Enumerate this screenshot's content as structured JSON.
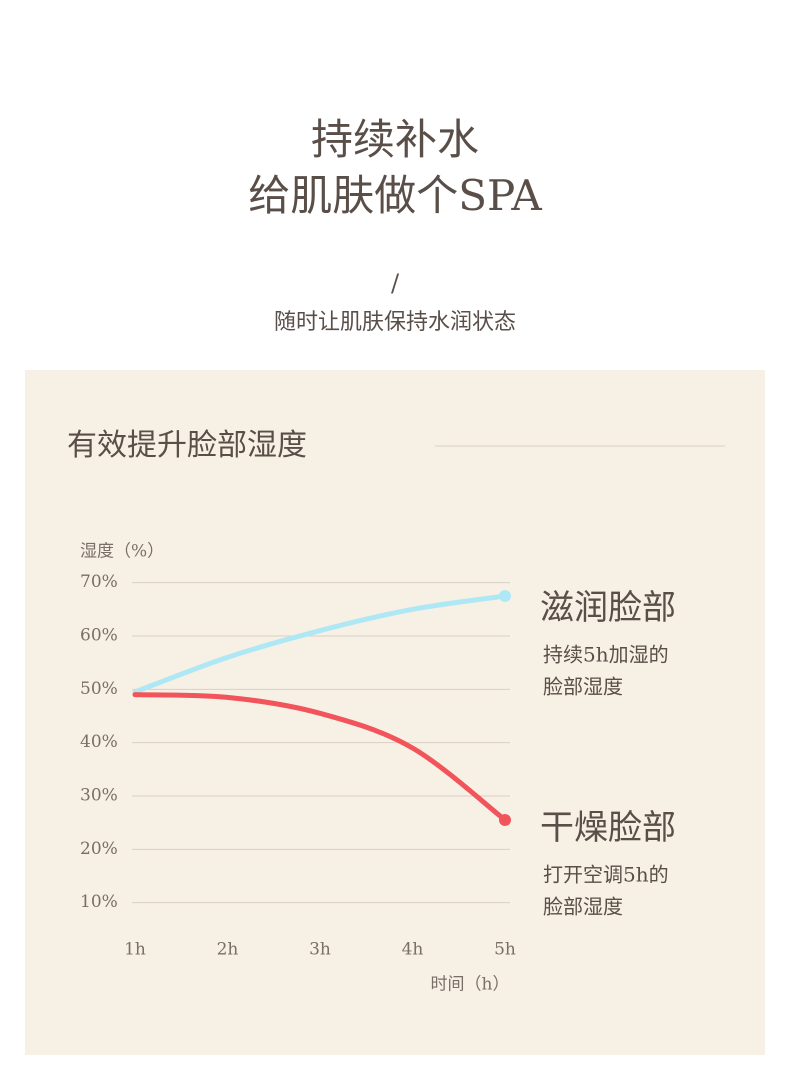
{
  "header": {
    "title_lines": [
      "持续补水",
      "给肌肤做个SPA"
    ],
    "divider": "/",
    "subtitle": "随时让肌肤保持水润状态"
  },
  "panel": {
    "heading": "有效提升脸部湿度"
  },
  "chart_data": {
    "type": "line",
    "y_label": "湿度（%）",
    "x_label": "时间（h）",
    "categories": [
      "1h",
      "2h",
      "3h",
      "4h",
      "5h"
    ],
    "series": [
      {
        "name": "滋润脸部",
        "color": "#aee8f5",
        "values": [
          49.5,
          56,
          61,
          65,
          67.5
        ],
        "notes": [
          "持续5h加湿的",
          "脸部湿度"
        ]
      },
      {
        "name": "干燥脸部",
        "color": "#f2545b",
        "values": [
          49,
          48.5,
          45.5,
          39,
          25.5
        ],
        "notes": [
          "打开空调5h的",
          "脸部湿度"
        ]
      }
    ],
    "ylim": [
      0,
      75
    ],
    "yticks": [
      {
        "value": 10,
        "label": "10%"
      },
      {
        "value": 20,
        "label": "20%"
      },
      {
        "value": 30,
        "label": "30%"
      },
      {
        "value": 40,
        "label": "40%"
      },
      {
        "value": 50,
        "label": "50%"
      },
      {
        "value": 60,
        "label": "60%"
      },
      {
        "value": 70,
        "label": "70%"
      }
    ],
    "grid": true
  }
}
